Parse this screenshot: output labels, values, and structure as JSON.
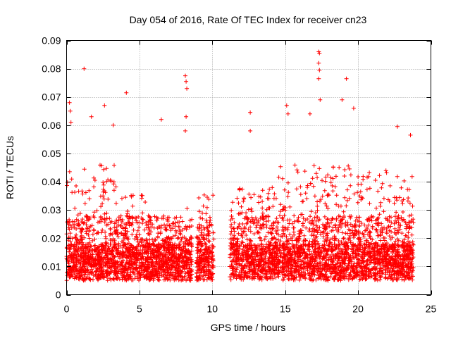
{
  "chart_data": {
    "type": "scatter",
    "title": "Day 054 of 2016, Rate Of TEC Index for receiver cn23",
    "xlabel": "GPS time / hours",
    "ylabel": "ROTI / TECUs",
    "xlim": [
      0,
      25
    ],
    "ylim": [
      0,
      0.09
    ],
    "xticks": [
      0,
      5,
      10,
      15,
      20,
      25
    ],
    "xtick_labels": [
      "0",
      "5",
      "10",
      "15",
      "20",
      "25"
    ],
    "yticks": [
      0,
      0.01,
      0.02,
      0.03,
      0.04,
      0.05,
      0.06,
      0.07,
      0.08,
      0.09
    ],
    "ytick_labels": [
      "0",
      "0.01",
      "0.02",
      "0.03",
      "0.04",
      "0.05",
      "0.06",
      "0.07",
      "0.08",
      "0.09"
    ],
    "grid": true,
    "marker": "+",
    "marker_color": "#ff0000",
    "data_gaps_hours": [
      [
        8.6,
        8.9
      ],
      [
        10.1,
        11.2
      ]
    ],
    "series": [
      {
        "name": "ROTI",
        "description": "dense band of points mostly between 0.005 and 0.03 TECU/s, with scattered spikes",
        "outliers": [
          {
            "x": 0.2,
            "y": 0.068
          },
          {
            "x": 0.25,
            "y": 0.065
          },
          {
            "x": 0.3,
            "y": 0.061
          },
          {
            "x": 1.2,
            "y": 0.08
          },
          {
            "x": 1.7,
            "y": 0.063
          },
          {
            "x": 2.6,
            "y": 0.067
          },
          {
            "x": 3.2,
            "y": 0.06
          },
          {
            "x": 4.1,
            "y": 0.0715
          },
          {
            "x": 6.5,
            "y": 0.062
          },
          {
            "x": 8.15,
            "y": 0.0775
          },
          {
            "x": 8.2,
            "y": 0.0755
          },
          {
            "x": 8.25,
            "y": 0.073
          },
          {
            "x": 8.2,
            "y": 0.063
          },
          {
            "x": 8.15,
            "y": 0.058
          },
          {
            "x": 12.6,
            "y": 0.0645
          },
          {
            "x": 12.6,
            "y": 0.058
          },
          {
            "x": 15.1,
            "y": 0.067
          },
          {
            "x": 15.2,
            "y": 0.064
          },
          {
            "x": 16.7,
            "y": 0.064
          },
          {
            "x": 17.3,
            "y": 0.086
          },
          {
            "x": 17.35,
            "y": 0.0855
          },
          {
            "x": 17.3,
            "y": 0.082
          },
          {
            "x": 17.35,
            "y": 0.0795
          },
          {
            "x": 17.3,
            "y": 0.0765
          },
          {
            "x": 17.4,
            "y": 0.069
          },
          {
            "x": 18.9,
            "y": 0.069
          },
          {
            "x": 19.2,
            "y": 0.0765
          },
          {
            "x": 19.7,
            "y": 0.066
          },
          {
            "x": 22.7,
            "y": 0.0595
          },
          {
            "x": 23.6,
            "y": 0.0565
          }
        ]
      }
    ]
  }
}
